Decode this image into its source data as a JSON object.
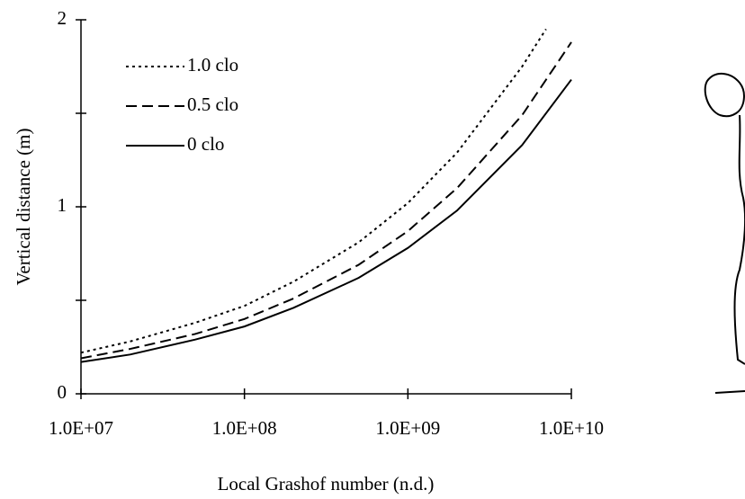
{
  "chart_data": {
    "type": "line",
    "x_label": "Local Grashof number (n.d.)",
    "y_label": "Vertical distance (m)",
    "xscale": "log",
    "xlim": [
      10000000,
      10000000000
    ],
    "ylim": [
      0,
      2
    ],
    "xticks": [
      {
        "value": 10000000,
        "label": "1.0E+07"
      },
      {
        "value": 100000000,
        "label": "1.0E+08"
      },
      {
        "value": 1000000000,
        "label": "1.0E+09"
      },
      {
        "value": 10000000000,
        "label": "1.0E+10"
      }
    ],
    "yticks": [
      0,
      1,
      2
    ],
    "y_minor_ticks": [
      0.5,
      1.5
    ],
    "color": "#000000",
    "series": [
      {
        "name": "1.0 clo",
        "dash": "dotted",
        "x": [
          10000000,
          20000000,
          50000000,
          100000000,
          200000000,
          500000000,
          1000000000,
          2000000000,
          5000000000,
          7000000000
        ],
        "values": [
          0.22,
          0.28,
          0.38,
          0.47,
          0.6,
          0.81,
          1.02,
          1.29,
          1.75,
          1.95
        ]
      },
      {
        "name": "0.5 clo",
        "dash": "dashed",
        "x": [
          10000000,
          20000000,
          50000000,
          100000000,
          200000000,
          500000000,
          1000000000,
          2000000000,
          5000000000,
          10000000000
        ],
        "values": [
          0.19,
          0.24,
          0.32,
          0.4,
          0.51,
          0.69,
          0.87,
          1.1,
          1.49,
          1.88
        ]
      },
      {
        "name": "0 clo",
        "dash": "solid",
        "x": [
          10000000,
          20000000,
          50000000,
          100000000,
          200000000,
          500000000,
          1000000000,
          2000000000,
          5000000000,
          10000000000
        ],
        "values": [
          0.17,
          0.21,
          0.29,
          0.36,
          0.46,
          0.62,
          0.78,
          0.98,
          1.33,
          1.68
        ]
      }
    ]
  }
}
